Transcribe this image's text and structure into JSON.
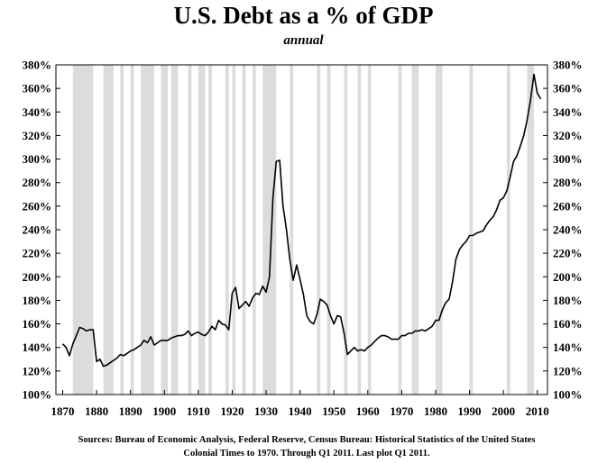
{
  "chart_data": {
    "type": "line",
    "title": "U.S. Debt as a % of GDP",
    "subtitle": "annual",
    "xlim": [
      1868,
      2013
    ],
    "ylim": [
      100,
      380
    ],
    "y_ticks": [
      100,
      120,
      140,
      160,
      180,
      200,
      220,
      240,
      260,
      280,
      300,
      320,
      340,
      360,
      380
    ],
    "y_tick_labels": [
      "100%",
      "120%",
      "140%",
      "160%",
      "180%",
      "200%",
      "220%",
      "240%",
      "260%",
      "280%",
      "300%",
      "320%",
      "340%",
      "360%",
      "380%"
    ],
    "x_ticks": [
      1870,
      1880,
      1890,
      1900,
      1910,
      1920,
      1930,
      1940,
      1950,
      1960,
      1970,
      1980,
      1990,
      2000,
      2010
    ],
    "x_tick_labels": [
      "1870",
      "1880",
      "1890",
      "1900",
      "1910",
      "1920",
      "1930",
      "1940",
      "1950",
      "1960",
      "1970",
      "1980",
      "1990",
      "2000",
      "2010"
    ],
    "recessions": [
      [
        1873,
        1879
      ],
      [
        1882,
        1885
      ],
      [
        1887,
        1888
      ],
      [
        1890,
        1891
      ],
      [
        1893,
        1897
      ],
      [
        1899,
        1901
      ],
      [
        1902,
        1904
      ],
      [
        1907,
        1908
      ],
      [
        1910,
        1912
      ],
      [
        1913,
        1914
      ],
      [
        1918,
        1919
      ],
      [
        1920,
        1921
      ],
      [
        1923,
        1924
      ],
      [
        1926,
        1927
      ],
      [
        1929,
        1933
      ],
      [
        1937,
        1938
      ],
      [
        1945,
        1946
      ],
      [
        1948,
        1949
      ],
      [
        1953,
        1954
      ],
      [
        1957,
        1958
      ],
      [
        1960,
        1961
      ],
      [
        1969,
        1970
      ],
      [
        1973,
        1975
      ],
      [
        1980,
        1981
      ],
      [
        1981,
        1982
      ],
      [
        1990,
        1991
      ],
      [
        2001,
        2002
      ],
      [
        2007,
        2009
      ]
    ],
    "series": [
      {
        "name": "U.S. Debt as a % of GDP",
        "x": [
          1870,
          1871,
          1872,
          1873,
          1874,
          1875,
          1876,
          1877,
          1878,
          1879,
          1880,
          1881,
          1882,
          1883,
          1884,
          1885,
          1886,
          1887,
          1888,
          1889,
          1890,
          1891,
          1892,
          1893,
          1894,
          1895,
          1896,
          1897,
          1898,
          1899,
          1900,
          1901,
          1902,
          1903,
          1904,
          1905,
          1906,
          1907,
          1908,
          1909,
          1910,
          1911,
          1912,
          1913,
          1914,
          1915,
          1916,
          1917,
          1918,
          1919,
          1920,
          1921,
          1922,
          1923,
          1924,
          1925,
          1926,
          1927,
          1928,
          1929,
          1930,
          1931,
          1932,
          1933,
          1934,
          1935,
          1936,
          1937,
          1938,
          1939,
          1940,
          1941,
          1942,
          1943,
          1944,
          1945,
          1946,
          1947,
          1948,
          1949,
          1950,
          1951,
          1952,
          1953,
          1954,
          1955,
          1956,
          1957,
          1958,
          1959,
          1960,
          1961,
          1962,
          1963,
          1964,
          1965,
          1966,
          1967,
          1968,
          1969,
          1970,
          1971,
          1972,
          1973,
          1974,
          1975,
          1976,
          1977,
          1978,
          1979,
          1980,
          1981,
          1982,
          1983,
          1984,
          1985,
          1986,
          1987,
          1988,
          1989,
          1990,
          1991,
          1992,
          1993,
          1994,
          1995,
          1996,
          1997,
          1998,
          1999,
          2000,
          2001,
          2002,
          2003,
          2004,
          2005,
          2006,
          2007,
          2008,
          2009,
          2010,
          2011
        ],
        "y": [
          143,
          140,
          133,
          143,
          150,
          157,
          156,
          154,
          155,
          155,
          128,
          130,
          124,
          125,
          127,
          129,
          131,
          134,
          133,
          135,
          137,
          138,
          140,
          142,
          146,
          144,
          149,
          142,
          144,
          146,
          146,
          146,
          148,
          149,
          150,
          150,
          151,
          154,
          150,
          152,
          153,
          151,
          150,
          153,
          158,
          155,
          163,
          160,
          159,
          155,
          186,
          191,
          173,
          176,
          179,
          175,
          182,
          186,
          185,
          192,
          187,
          200,
          267,
          298,
          299,
          260,
          240,
          215,
          197,
          210,
          198,
          185,
          167,
          162,
          160,
          168,
          181,
          179,
          176,
          167,
          160,
          167,
          166,
          152,
          134,
          137,
          140,
          137,
          138,
          137,
          140,
          142,
          145,
          148,
          150,
          150,
          149,
          147,
          147,
          147,
          150,
          150,
          152,
          152,
          154,
          154,
          155,
          154,
          156,
          158,
          163,
          163,
          172,
          178,
          181,
          196,
          215,
          223,
          227,
          230,
          235,
          235,
          237,
          238,
          239,
          244,
          248,
          251,
          257,
          265,
          267,
          273,
          285,
          298,
          303,
          311,
          320,
          333,
          350,
          372,
          356,
          351
        ]
      }
    ]
  },
  "source_text": "Sources: Bureau of Economic Analysis, Federal Reserve, Census Bureau: Historical Statistics of the United States",
  "source_text_2": "Colonial Times to 1970.   Through Q1 2011. Last plot Q1 2011."
}
